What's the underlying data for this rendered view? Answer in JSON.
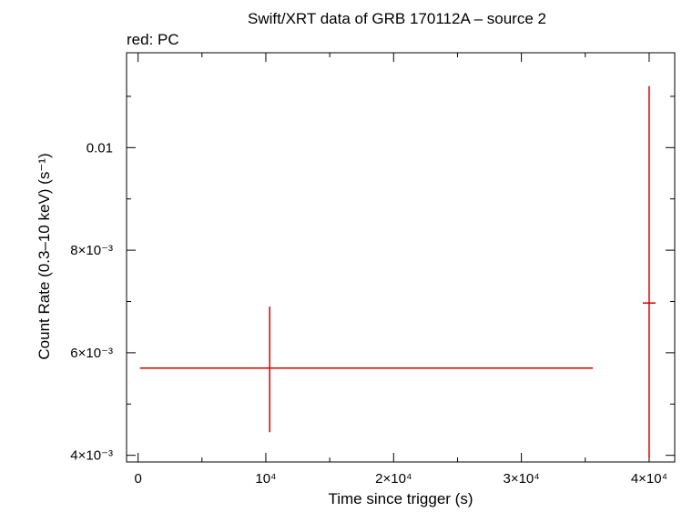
{
  "chart_data": {
    "type": "scatter",
    "title": "Swift/XRT data of GRB 170112A – source 2",
    "subtitle": "red: PC",
    "xlabel": "Time since trigger (s)",
    "ylabel": "Count Rate (0.3–10 keV) (s⁻¹)",
    "xlim": [
      -900,
      42000
    ],
    "ylim": [
      0.00387,
      0.01185
    ],
    "grid": false,
    "x_ticks": [
      {
        "value": 0,
        "label": "0"
      },
      {
        "value": 10000,
        "label": "10⁴"
      },
      {
        "value": 20000,
        "label": "2×10⁴"
      },
      {
        "value": 30000,
        "label": "3×10⁴"
      },
      {
        "value": 40000,
        "label": "4×10⁴"
      }
    ],
    "y_ticks": [
      {
        "value": 0.004,
        "label": "4×10⁻³"
      },
      {
        "value": 0.006,
        "label": "6×10⁻³"
      },
      {
        "value": 0.008,
        "label": "8×10⁻³"
      },
      {
        "value": 0.01,
        "label": "0.01"
      }
    ],
    "series": [
      {
        "color": "#d40000",
        "points": [
          {
            "x": 10300,
            "x_low": 150,
            "x_high": 35600,
            "y": 0.0057,
            "y_low": 0.00445,
            "y_high": 0.0069
          },
          {
            "x": 40000,
            "x_low": 39500,
            "x_high": 40500,
            "y": 0.00697,
            "y_low": 0.00395,
            "y_high": 0.0112
          }
        ]
      }
    ]
  }
}
